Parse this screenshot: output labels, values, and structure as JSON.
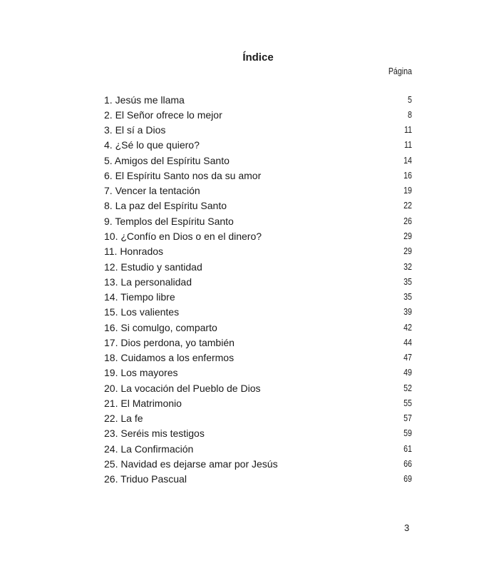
{
  "title": "Índice",
  "column_header": "Página",
  "entries": [
    {
      "label": "1. Jesús me llama",
      "page": "5"
    },
    {
      "label": "2. El Señor ofrece lo mejor",
      "page": "8"
    },
    {
      "label": "3. El sí a Dios",
      "page": "11"
    },
    {
      "label": "4. ¿Sé lo que quiero?",
      "page": "11"
    },
    {
      "label": "5. Amigos del Espíritu Santo",
      "page": "14"
    },
    {
      "label": "6. El Espíritu Santo nos da su amor",
      "page": "16"
    },
    {
      "label": "7. Vencer la tentación",
      "page": "19"
    },
    {
      "label": "8. La paz del Espíritu Santo",
      "page": "22"
    },
    {
      "label": "9. Templos del Espíritu Santo",
      "page": "26"
    },
    {
      "label": "10. ¿Confío en Dios o en el dinero?",
      "page": "29"
    },
    {
      "label": "11. Honrados",
      "page": "29"
    },
    {
      "label": "12. Estudio y santidad",
      "page": "32"
    },
    {
      "label": "13. La personalidad",
      "page": "35"
    },
    {
      "label": "14. Tiempo libre",
      "page": "35"
    },
    {
      "label": "15. Los valientes",
      "page": "39"
    },
    {
      "label": "16. Si comulgo, comparto",
      "page": "42"
    },
    {
      "label": "17. Dios perdona, yo también",
      "page": "44"
    },
    {
      "label": "18. Cuidamos a los enfermos",
      "page": "47"
    },
    {
      "label": "19. Los mayores",
      "page": "49"
    },
    {
      "label": "20. La vocación del Pueblo de Dios",
      "page": "52"
    },
    {
      "label": "21. El Matrimonio",
      "page": "55"
    },
    {
      "label": "22. La fe",
      "page": "57"
    },
    {
      "label": "23. Seréis mis testigos",
      "page": "59"
    },
    {
      "label": "24. La Confirmación",
      "page": "61"
    },
    {
      "label": "25. Navidad es dejarse amar por Jesús",
      "page": "66"
    },
    {
      "label": "26. Triduo Pascual",
      "page": "69"
    }
  ],
  "page_number": "3"
}
